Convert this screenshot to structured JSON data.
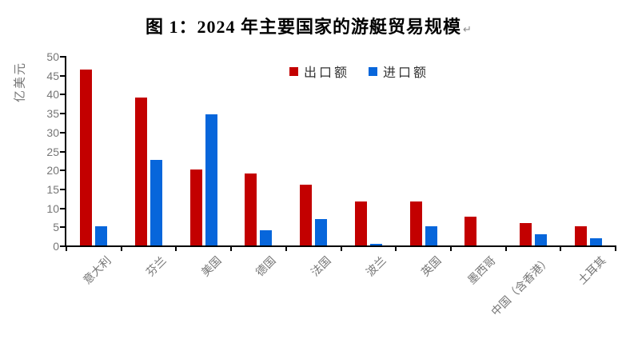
{
  "title": {
    "text": "图 1：2024 年主要国家的游艇贸易规模",
    "paragraph_mark": "↵"
  },
  "chart_data": {
    "type": "bar",
    "title": "图 1：2024 年主要国家的游艇贸易规模",
    "xlabel": "",
    "ylabel": "亿美元",
    "ylim": [
      0,
      50
    ],
    "yticks": [
      0,
      5,
      10,
      15,
      20,
      25,
      30,
      35,
      40,
      45,
      50
    ],
    "grid": false,
    "legend_position": "top-center",
    "categories": [
      "意大利",
      "芬兰",
      "美国",
      "德国",
      "法国",
      "波兰",
      "英国",
      "墨西哥",
      "中国（含香港）",
      "土耳其"
    ],
    "series": [
      {
        "name": "出口额",
        "color": "#c30000",
        "values": [
          46.5,
          39,
          20,
          19,
          16,
          11.5,
          11.5,
          7.5,
          6,
          5
        ]
      },
      {
        "name": "进口额",
        "color": "#0766db",
        "values": [
          5,
          22.5,
          34.5,
          4,
          7,
          0.5,
          5,
          0,
          3,
          2
        ]
      }
    ]
  },
  "colors": {
    "export_bar": "#c30000",
    "import_bar": "#0766db",
    "axis": "#000000",
    "tick_text": "#767676",
    "title_text": "#000000"
  }
}
